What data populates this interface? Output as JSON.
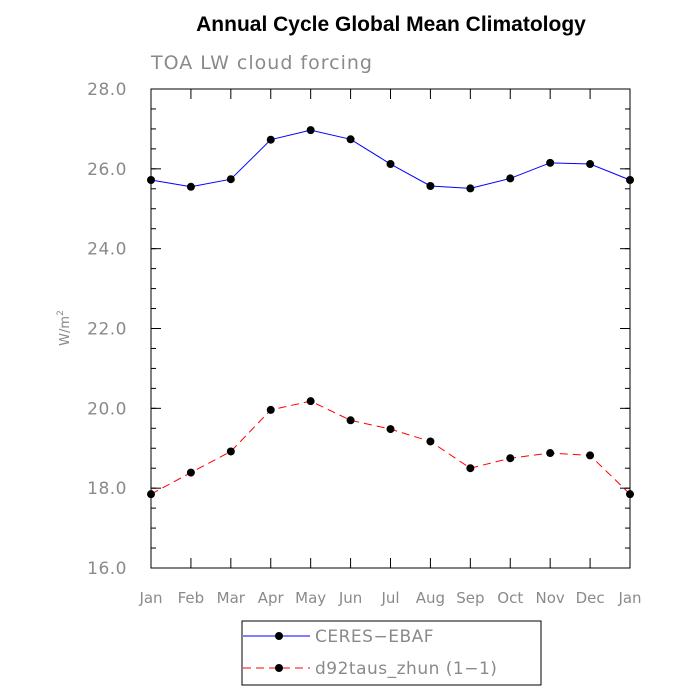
{
  "chart_data": {
    "type": "line",
    "title": "Annual Cycle Global Mean Climatology",
    "subtitle": "TOA LW cloud forcing",
    "xlabel": "",
    "ylabel": "W/m",
    "ylabel_superscript": "2",
    "categories": [
      "Jan",
      "Feb",
      "Mar",
      "Apr",
      "May",
      "Jun",
      "Jul",
      "Aug",
      "Sep",
      "Oct",
      "Nov",
      "Dec",
      "Jan"
    ],
    "ylim": [
      16.0,
      28.0
    ],
    "yticks": [
      "16.0",
      "18.0",
      "20.0",
      "22.0",
      "24.0",
      "26.0",
      "28.0"
    ],
    "grid": false,
    "legend_position": "bottom",
    "series": [
      {
        "name": "CERES−EBAF",
        "color": "#0000ff",
        "line_style": "solid",
        "values": [
          25.72,
          25.55,
          25.74,
          26.73,
          26.97,
          26.74,
          26.12,
          25.57,
          25.51,
          25.76,
          26.15,
          26.12,
          25.72
        ]
      },
      {
        "name": "d92taus_zhun (1−1)",
        "color": "#ff0000",
        "line_style": "dashed",
        "values": [
          17.85,
          18.39,
          18.92,
          19.96,
          20.18,
          19.7,
          19.48,
          19.17,
          18.5,
          18.75,
          18.88,
          18.82,
          17.85
        ]
      }
    ]
  }
}
